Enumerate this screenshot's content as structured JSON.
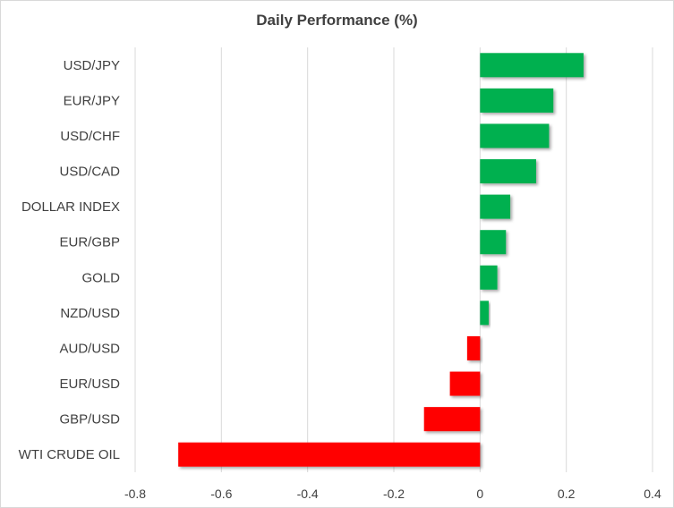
{
  "chart_data": {
    "type": "bar",
    "orientation": "horizontal",
    "title": "Daily Performance (%)",
    "xlabel": "",
    "ylabel": "",
    "categories": [
      "USD/JPY",
      "EUR/JPY",
      "USD/CHF",
      "USD/CAD",
      "DOLLAR INDEX",
      "EUR/GBP",
      "GOLD",
      "NZD/USD",
      "AUD/USD",
      "EUR/USD",
      "GBP/USD",
      "WTI CRUDE OIL"
    ],
    "values": [
      0.24,
      0.17,
      0.16,
      0.13,
      0.07,
      0.06,
      0.04,
      0.02,
      -0.03,
      -0.07,
      -0.13,
      -0.7
    ],
    "xlim": [
      -0.8,
      0.4
    ],
    "xticks": [
      -0.8,
      -0.6,
      -0.4,
      -0.2,
      0,
      0.2,
      0.4
    ],
    "xtick_labels": [
      "-0.8",
      "-0.6",
      "-0.4",
      "-0.2",
      "0",
      "0.2",
      "0.4"
    ],
    "grid": true,
    "legend": "none",
    "colors": {
      "positive": "#00b050",
      "negative": "#ff0000",
      "grid": "#d9d9d9"
    }
  }
}
